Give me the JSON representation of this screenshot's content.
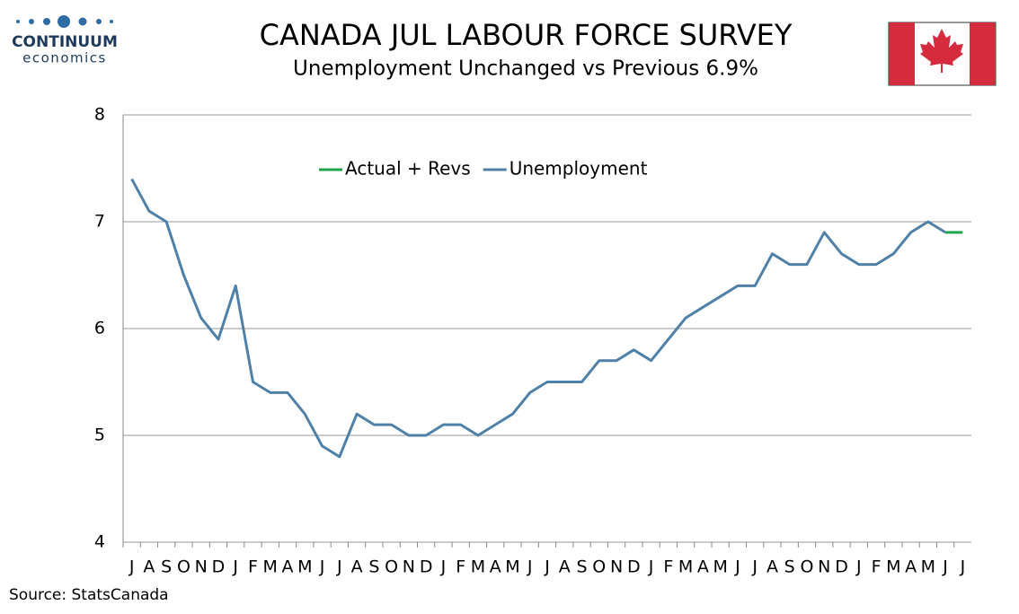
{
  "logo": {
    "name": "CONTINUUM",
    "tagline": "economics"
  },
  "source": "Source: StatsCanada",
  "chart_data": {
    "type": "line",
    "title": "CANADA JUL LABOUR FORCE SURVEY",
    "subtitle": "Unemployment Unchanged vs Previous 6.9%",
    "categories": [
      "J",
      "A",
      "S",
      "O",
      "N",
      "D",
      "J",
      "F",
      "M",
      "A",
      "M",
      "J",
      "J",
      "A",
      "S",
      "O",
      "N",
      "D",
      "J",
      "F",
      "M",
      "A",
      "M",
      "J",
      "J",
      "A",
      "S",
      "O",
      "N",
      "D",
      "J",
      "F",
      "M",
      "A",
      "M",
      "J",
      "J",
      "A",
      "S",
      "O",
      "N",
      "D",
      "J",
      "F",
      "M",
      "A",
      "M",
      "J",
      "J"
    ],
    "series": [
      {
        "name": "Actual + Revs",
        "color": "#1fa64a",
        "values": [
          null,
          null,
          null,
          null,
          null,
          null,
          null,
          null,
          null,
          null,
          null,
          null,
          null,
          null,
          null,
          null,
          null,
          null,
          null,
          null,
          null,
          null,
          null,
          null,
          null,
          null,
          null,
          null,
          null,
          null,
          null,
          null,
          null,
          null,
          null,
          null,
          null,
          null,
          null,
          null,
          null,
          null,
          null,
          null,
          null,
          null,
          null,
          6.9,
          6.9
        ]
      },
      {
        "name": "Unemployment",
        "color": "#4f81a8",
        "values": [
          7.4,
          7.1,
          7.0,
          6.5,
          6.1,
          5.9,
          6.4,
          5.5,
          5.4,
          5.4,
          5.2,
          4.9,
          4.8,
          5.2,
          5.1,
          5.1,
          5.0,
          5.0,
          5.1,
          5.1,
          5.0,
          5.1,
          5.2,
          5.4,
          5.5,
          5.5,
          5.5,
          5.7,
          5.7,
          5.8,
          5.7,
          5.9,
          6.1,
          6.2,
          6.3,
          6.4,
          6.4,
          6.7,
          6.6,
          6.6,
          6.9,
          6.7,
          6.6,
          6.6,
          6.7,
          6.9,
          7.0,
          6.9,
          null
        ]
      }
    ],
    "ylim": [
      4,
      8
    ],
    "yticks": [
      4,
      5,
      6,
      7,
      8
    ],
    "grid": true,
    "legend": "top"
  }
}
